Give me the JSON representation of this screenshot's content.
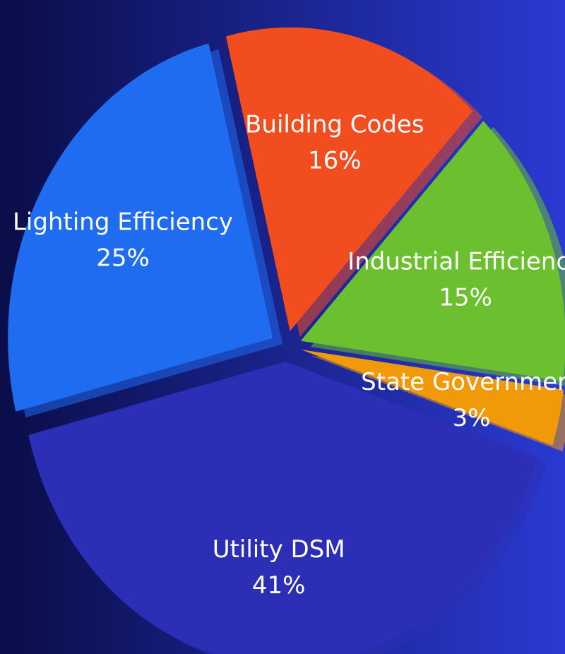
{
  "chart_data": {
    "type": "pie",
    "categories": [
      "Building Codes",
      "Industrial Efficiency",
      "State Government",
      "Utility DSM",
      "Lighting Efficiency"
    ],
    "values": [
      16,
      15,
      3,
      41,
      25
    ],
    "value_labels": [
      "16%",
      "15%",
      "3%",
      "41%",
      "25%"
    ],
    "colors": [
      "#f24d1f",
      "#6cbf2e",
      "#f09a0a",
      "#2c2fb5",
      "#1f6cf0"
    ]
  }
}
